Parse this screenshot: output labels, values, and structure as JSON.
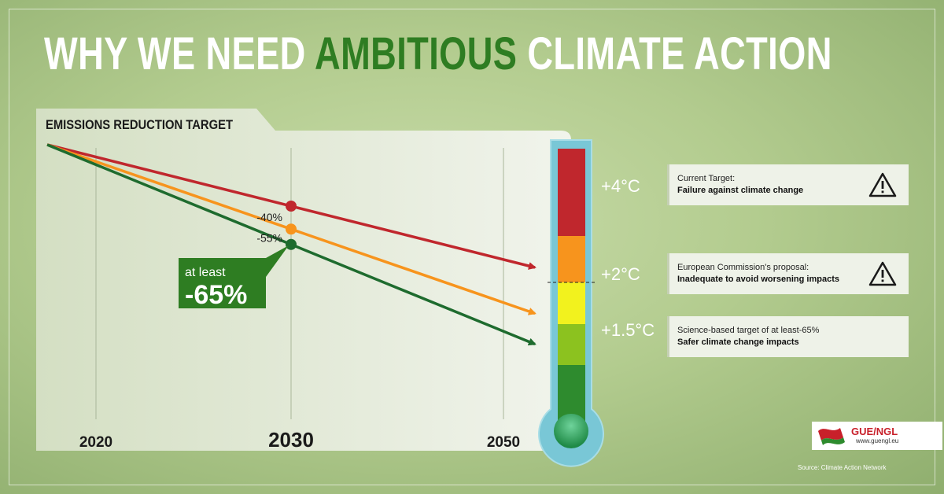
{
  "title": {
    "part1": "WHY WE NEED",
    "accent": "AMBITIOUS",
    "part2": "CLIMATE ACTION"
  },
  "colors": {
    "red": "#c0272d",
    "orange": "#f7941d",
    "green": "#1e6b2e",
    "accent_green": "#2e7d22"
  },
  "chart_data": {
    "type": "line",
    "title": "EMISSIONS REDUCTION TARGET",
    "xlabel": "",
    "ylabel": "",
    "x_ticks": [
      "2020",
      "2030",
      "2050"
    ],
    "series": [
      {
        "key": "current",
        "color": "#c0272d",
        "points": [
          {
            "x": 2020,
            "y": 0
          },
          {
            "x": 2030,
            "y": -40
          }
        ],
        "point_label": "-40%"
      },
      {
        "key": "commission",
        "color": "#f7941d",
        "points": [
          {
            "x": 2020,
            "y": 0
          },
          {
            "x": 2030,
            "y": -55
          }
        ],
        "point_label": "-55%"
      },
      {
        "key": "science",
        "color": "#1e6b2e",
        "points": [
          {
            "x": 2020,
            "y": 0
          },
          {
            "x": 2030,
            "y": -65
          }
        ]
      }
    ],
    "callout": {
      "line1": "at least",
      "line2": "-65%"
    }
  },
  "thermometer": {
    "levels": [
      {
        "label": "+4°C",
        "color": "#c0272d"
      },
      {
        "label": "+2°C",
        "color": "#f7941d"
      },
      {
        "label": "+1.5°C",
        "color": "#8cc21f"
      }
    ],
    "segment_colors": [
      "#c0272d",
      "#f7941d",
      "#f2f21e",
      "#8cc21f",
      "#2e8b2e"
    ]
  },
  "legend": [
    {
      "line1": "Current Target:",
      "line2": "Failure against climate change",
      "icon": "warning-icon"
    },
    {
      "line1": "European Commission's proposal:",
      "line2": "Inadequate to avoid worsening impacts",
      "icon": "warning-icon"
    },
    {
      "line1": "Science-based target of at least-65%",
      "line2": "Safer climate change impacts"
    }
  ],
  "logo": {
    "name": "GUE/NGL",
    "url": "www.guengl.eu"
  },
  "source": "Source: Climate Action Network"
}
